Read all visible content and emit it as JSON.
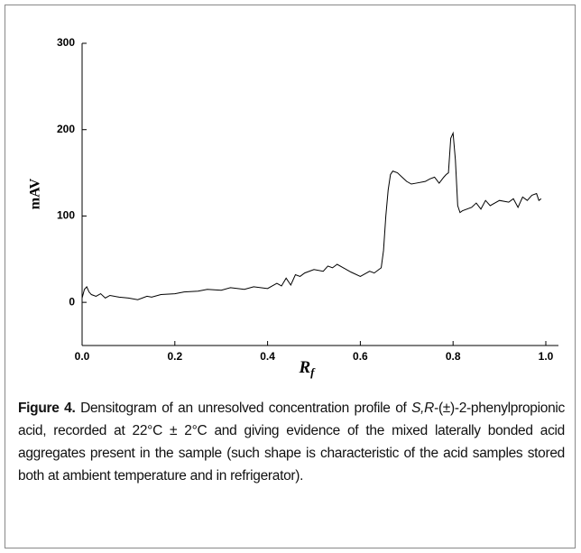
{
  "chart_data": {
    "type": "line",
    "color": "#000000",
    "ylabel": "mAV",
    "xlabel_symbol": "R",
    "xlabel_subscript": "f",
    "xlim": [
      0,
      1
    ],
    "ylim": [
      -50,
      300
    ],
    "xticks": [
      {
        "value": 0,
        "label": "0.0"
      },
      0.2,
      0.4,
      0.6,
      0.8,
      {
        "value": 1,
        "label": "1.0"
      }
    ],
    "yticks": [
      0,
      100,
      200,
      300
    ],
    "x": [
      0,
      0.005,
      0.01,
      0.015,
      0.02,
      0.03,
      0.04,
      0.05,
      0.06,
      0.08,
      0.1,
      0.12,
      0.14,
      0.15,
      0.17,
      0.2,
      0.22,
      0.25,
      0.27,
      0.3,
      0.32,
      0.35,
      0.37,
      0.4,
      0.42,
      0.43,
      0.44,
      0.45,
      0.46,
      0.47,
      0.48,
      0.5,
      0.52,
      0.53,
      0.54,
      0.55,
      0.57,
      0.58,
      0.6,
      0.62,
      0.63,
      0.64,
      0.645,
      0.65,
      0.655,
      0.66,
      0.665,
      0.67,
      0.68,
      0.69,
      0.7,
      0.71,
      0.72,
      0.74,
      0.75,
      0.76,
      0.77,
      0.78,
      0.785,
      0.79,
      0.795,
      0.8,
      0.805,
      0.81,
      0.815,
      0.82,
      0.84,
      0.85,
      0.86,
      0.87,
      0.88,
      0.9,
      0.92,
      0.93,
      0.94,
      0.95,
      0.96,
      0.97,
      0.98,
      0.985,
      0.99
    ],
    "values": [
      5,
      15,
      18,
      12,
      9,
      7,
      10,
      5,
      8,
      6,
      5,
      3,
      7,
      6,
      9,
      10,
      12,
      13,
      15,
      14,
      17,
      15,
      18,
      16,
      22,
      19,
      28,
      20,
      32,
      30,
      34,
      38,
      36,
      42,
      40,
      44,
      38,
      35,
      30,
      36,
      34,
      38,
      40,
      60,
      100,
      130,
      148,
      152,
      150,
      145,
      140,
      137,
      138,
      140,
      143,
      145,
      138,
      145,
      148,
      150,
      190,
      196,
      165,
      112,
      104,
      106,
      110,
      115,
      108,
      118,
      112,
      118,
      116,
      120,
      110,
      122,
      118,
      124,
      126,
      118,
      120
    ]
  },
  "caption": {
    "label": "Figure 4.",
    "text_before": " Densitogram of an unresolved concentration profile of ",
    "italic": "S,R",
    "text_after": "-(±)-2-phenylpropionic acid, recorded at 22°C ± 2°C and giving evidence of the mixed laterally bonded acid aggregates present in the sample (such shape is characteristic of the acid samples stored both at ambient temperature and in refrigerator)."
  }
}
